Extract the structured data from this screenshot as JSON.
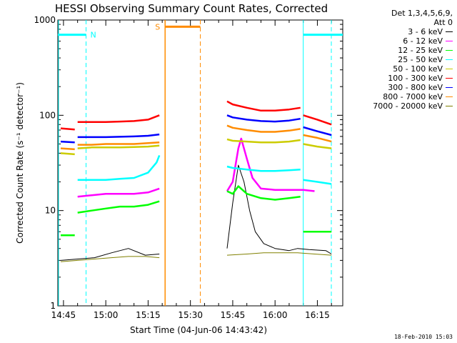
{
  "chart_data": {
    "type": "line",
    "title": "HESSI Observing Summary Count Rates, Corrected",
    "xlabel": "Start Time (04-Jun-06 14:43:42)",
    "ylabel": "Corrected Count Rate (s⁻¹ detector⁻¹)",
    "y_scale": "log",
    "ylim": [
      1,
      1000
    ],
    "y_ticks": [
      1,
      10,
      100,
      1000
    ],
    "y_tick_labels": [
      "1",
      "10",
      "100",
      "1000"
    ],
    "xlim": [
      "14:43",
      "16:24"
    ],
    "x_ticks": [
      "14:45",
      "15:00",
      "15:15",
      "15:30",
      "15:45",
      "16:00",
      "16:15"
    ],
    "grid": false,
    "legend_header": [
      "Det 1,3,4,5,6,9,",
      "Att 0"
    ],
    "legend_position": "right",
    "series": [
      {
        "name": "3 - 6 keV",
        "color": "#000000",
        "segments": [
          {
            "x": [
              "14:44",
              "14:50",
              "14:56",
              "15:02",
              "15:08",
              "15:14",
              "15:19"
            ],
            "y": [
              3.0,
              3.1,
              3.2,
              3.6,
              4.0,
              3.4,
              3.5
            ]
          },
          {
            "x": [
              "15:43",
              "15:45",
              "15:47",
              "15:49",
              "15:51",
              "15:53",
              "15:56",
              "16:00",
              "16:05",
              "16:08",
              "16:12",
              "16:18",
              "16:20"
            ],
            "y": [
              4.0,
              12,
              30,
              20,
              10,
              6,
              4.5,
              4.0,
              3.8,
              4.0,
              3.9,
              3.8,
              3.5
            ]
          }
        ]
      },
      {
        "name": "6 - 12 keV",
        "color": "#ff00ff",
        "segments": [
          {
            "x": [
              "14:50",
              "14:55",
              "15:00",
              "15:05",
              "15:10",
              "15:15",
              "15:19"
            ],
            "y": [
              14,
              14.5,
              15,
              15,
              15,
              15.5,
              17
            ]
          },
          {
            "x": [
              "15:43",
              "15:45",
              "15:47",
              "15:48",
              "15:50",
              "15:52",
              "15:55",
              "16:00",
              "16:05",
              "16:10",
              "16:14"
            ],
            "y": [
              16,
              20,
              45,
              57,
              35,
              22,
              17,
              16.5,
              16.5,
              16.5,
              16
            ]
          }
        ]
      },
      {
        "name": "12 - 25 keV",
        "color": "#00ff00",
        "segments": [
          {
            "x": [
              "14:44",
              "14:49"
            ],
            "y": [
              5.5,
              5.5
            ]
          },
          {
            "x": [
              "14:50",
              "14:55",
              "15:00",
              "15:05",
              "15:10",
              "15:15",
              "15:19"
            ],
            "y": [
              9.5,
              10,
              10.5,
              11,
              11,
              11.5,
              12.5
            ]
          },
          {
            "x": [
              "15:43",
              "15:45",
              "15:47",
              "15:50",
              "15:55",
              "16:00",
              "16:05",
              "16:09"
            ],
            "y": [
              16,
              15,
              18,
              15,
              13.5,
              13,
              13.5,
              14
            ]
          },
          {
            "x": [
              "16:10",
              "16:15",
              "16:20"
            ],
            "y": [
              6,
              6,
              6
            ]
          }
        ]
      },
      {
        "name": "25 - 50 keV",
        "color": "#00ffff",
        "segments": [
          {
            "x": [
              "14:50",
              "14:55",
              "15:00",
              "15:05",
              "15:10",
              "15:15",
              "15:18",
              "15:19"
            ],
            "y": [
              21,
              21,
              21,
              21.5,
              22,
              25,
              32,
              38
            ]
          },
          {
            "x": [
              "15:43",
              "15:45",
              "15:50",
              "15:55",
              "16:00",
              "16:05",
              "16:09"
            ],
            "y": [
              29,
              28,
              27,
              26,
              26,
              26.5,
              27
            ]
          },
          {
            "x": [
              "16:10",
              "16:15",
              "16:20"
            ],
            "y": [
              21,
              20,
              19
            ]
          }
        ]
      },
      {
        "name": "50 - 100 keV",
        "color": "#cccc00",
        "segments": [
          {
            "x": [
              "14:44",
              "14:49"
            ],
            "y": [
              40,
              39
            ]
          },
          {
            "x": [
              "14:50",
              "14:55",
              "15:00",
              "15:05",
              "15:10",
              "15:15",
              "15:19"
            ],
            "y": [
              45,
              46,
              46,
              46,
              46.5,
              47,
              48
            ]
          },
          {
            "x": [
              "15:43",
              "15:45",
              "15:50",
              "15:55",
              "16:00",
              "16:05",
              "16:09"
            ],
            "y": [
              56,
              54,
              53,
              52,
              52,
              53,
              55
            ]
          },
          {
            "x": [
              "16:10",
              "16:15",
              "16:20"
            ],
            "y": [
              50,
              47,
              45
            ]
          }
        ]
      },
      {
        "name": "100 - 300 keV",
        "color": "#ff0000",
        "segments": [
          {
            "x": [
              "14:44",
              "14:49"
            ],
            "y": [
              73,
              71
            ]
          },
          {
            "x": [
              "14:50",
              "14:55",
              "15:00",
              "15:05",
              "15:10",
              "15:15",
              "15:19"
            ],
            "y": [
              85,
              85,
              85,
              86,
              87,
              90,
              100
            ]
          },
          {
            "x": [
              "15:43",
              "15:45",
              "15:50",
              "15:55",
              "16:00",
              "16:05",
              "16:09"
            ],
            "y": [
              140,
              130,
              120,
              112,
              112,
              115,
              120
            ]
          },
          {
            "x": [
              "16:10",
              "16:15",
              "16:20"
            ],
            "y": [
              100,
              90,
              80
            ]
          }
        ]
      },
      {
        "name": "300 - 800 keV",
        "color": "#0000ff",
        "segments": [
          {
            "x": [
              "14:44",
              "14:49"
            ],
            "y": [
              53,
              52
            ]
          },
          {
            "x": [
              "14:50",
              "14:55",
              "15:00",
              "15:05",
              "15:10",
              "15:15",
              "15:19"
            ],
            "y": [
              59,
              59,
              59,
              59.5,
              60,
              61,
              63
            ]
          },
          {
            "x": [
              "15:43",
              "15:45",
              "15:50",
              "15:55",
              "16:00",
              "16:05",
              "16:09"
            ],
            "y": [
              100,
              95,
              90,
              87,
              86,
              88,
              92
            ]
          },
          {
            "x": [
              "16:10",
              "16:15",
              "16:20"
            ],
            "y": [
              75,
              68,
              62
            ]
          }
        ]
      },
      {
        "name": "800 - 7000 keV",
        "color": "#ff8c00",
        "segments": [
          {
            "x": [
              "14:44",
              "14:49"
            ],
            "y": [
              45,
              44
            ]
          },
          {
            "x": [
              "14:50",
              "14:55",
              "15:00",
              "15:05",
              "15:10",
              "15:15",
              "15:19"
            ],
            "y": [
              49,
              49,
              50,
              50,
              50,
              51,
              52
            ]
          },
          {
            "x": [
              "15:43",
              "15:45",
              "15:50",
              "15:55",
              "16:00",
              "16:05",
              "16:09"
            ],
            "y": [
              78,
              74,
              70,
              67,
              67,
              69,
              72
            ]
          },
          {
            "x": [
              "16:10",
              "16:15",
              "16:20"
            ],
            "y": [
              62,
              58,
              53
            ]
          }
        ]
      },
      {
        "name": "7000 - 20000 keV",
        "color": "#808000",
        "segments": [
          {
            "x": [
              "14:44",
              "14:50",
              "14:56",
              "15:02",
              "15:08",
              "15:14",
              "15:19"
            ],
            "y": [
              2.9,
              3.0,
              3.1,
              3.2,
              3.3,
              3.3,
              3.2
            ]
          },
          {
            "x": [
              "15:43",
              "15:50",
              "15:56",
              "16:02",
              "16:08",
              "16:14",
              "16:20"
            ],
            "y": [
              3.4,
              3.5,
              3.6,
              3.6,
              3.6,
              3.5,
              3.4
            ]
          }
        ]
      }
    ],
    "annotations": {
      "night_label": "N",
      "saa_label": "S",
      "night_color": "#00ffff",
      "saa_color": "#ff8c00",
      "night_intervals": [
        [
          "14:43",
          "14:53"
        ],
        [
          "16:10",
          "16:24"
        ]
      ],
      "saa_interval": [
        "15:19",
        "15:33"
      ],
      "night_bar_y": 700,
      "saa_bar_y": 850
    },
    "footer_date": "18-Feb-2010 15:03"
  }
}
